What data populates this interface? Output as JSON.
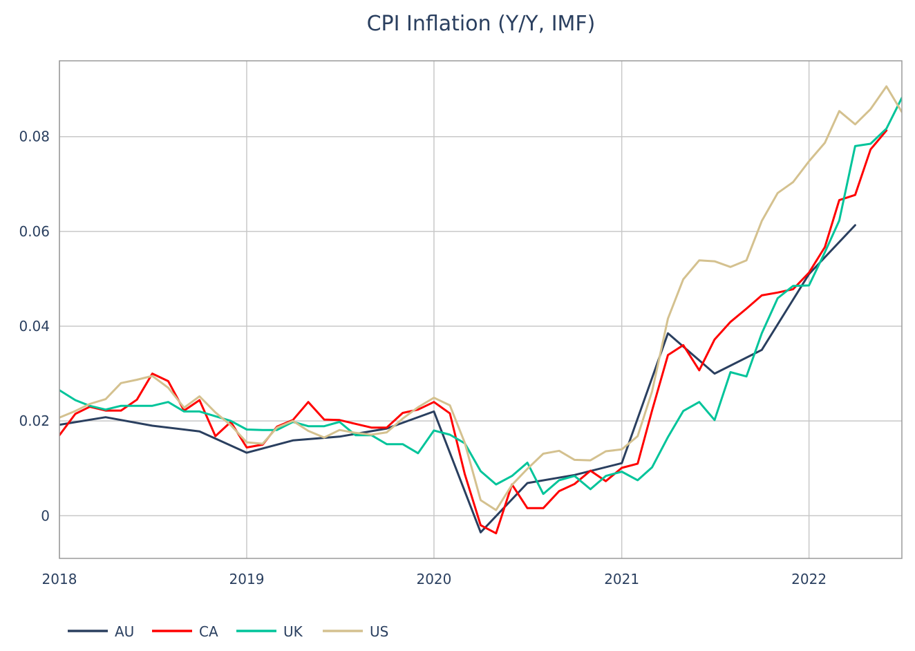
{
  "chart_data": {
    "type": "line",
    "title": "CPI Inflation (Y/Y, IMF)",
    "xlabel": "",
    "ylabel": "",
    "x_ticks": [
      "2018",
      "2019",
      "2020",
      "2021",
      "2022"
    ],
    "y_ticks": [
      0,
      0.02,
      0.04,
      0.06,
      0.08
    ],
    "y_tick_labels": [
      "0",
      "0.02",
      "0.04",
      "0.06",
      "0.08"
    ],
    "xlim": [
      "2018-01-01",
      "2022-07-01"
    ],
    "ylim": [
      -0.009,
      0.096
    ],
    "grid": true,
    "legend_position": "bottom-left",
    "series": [
      {
        "name": "AU",
        "color": "#2a3f5f",
        "points": [
          [
            "2018-01-01",
            0.0192
          ],
          [
            "2018-04-01",
            0.0208
          ],
          [
            "2018-07-01",
            0.019
          ],
          [
            "2018-10-01",
            0.0178
          ],
          [
            "2019-01-01",
            0.0133
          ],
          [
            "2019-04-01",
            0.0159
          ],
          [
            "2019-07-01",
            0.0167
          ],
          [
            "2019-10-01",
            0.0184
          ],
          [
            "2020-01-01",
            0.022
          ],
          [
            "2020-04-01",
            -0.0035
          ],
          [
            "2020-07-01",
            0.0069
          ],
          [
            "2020-10-01",
            0.0086
          ],
          [
            "2021-01-01",
            0.0111
          ],
          [
            "2021-04-01",
            0.0385
          ],
          [
            "2021-07-01",
            0.03
          ],
          [
            "2021-10-01",
            0.035
          ],
          [
            "2022-01-01",
            0.051
          ],
          [
            "2022-04-01",
            0.0613
          ]
        ]
      },
      {
        "name": "CA",
        "color": "#ff0000",
        "points": [
          [
            "2018-01-01",
            0.017
          ],
          [
            "2018-02-01",
            0.0215
          ],
          [
            "2018-03-01",
            0.023
          ],
          [
            "2018-04-01",
            0.0222
          ],
          [
            "2018-05-01",
            0.0222
          ],
          [
            "2018-06-01",
            0.0245
          ],
          [
            "2018-07-01",
            0.03
          ],
          [
            "2018-08-01",
            0.0284
          ],
          [
            "2018-09-01",
            0.0222
          ],
          [
            "2018-10-01",
            0.0244
          ],
          [
            "2018-11-01",
            0.0168
          ],
          [
            "2018-12-01",
            0.0198
          ],
          [
            "2019-01-01",
            0.0144
          ],
          [
            "2019-02-01",
            0.015
          ],
          [
            "2019-03-01",
            0.0188
          ],
          [
            "2019-04-01",
            0.0202
          ],
          [
            "2019-05-01",
            0.024
          ],
          [
            "2019-06-01",
            0.0203
          ],
          [
            "2019-07-01",
            0.0202
          ],
          [
            "2019-08-01",
            0.0194
          ],
          [
            "2019-09-01",
            0.0186
          ],
          [
            "2019-10-01",
            0.0186
          ],
          [
            "2019-11-01",
            0.0217
          ],
          [
            "2019-12-01",
            0.0224
          ],
          [
            "2020-01-01",
            0.024
          ],
          [
            "2020-02-01",
            0.0216
          ],
          [
            "2020-03-01",
            0.0088
          ],
          [
            "2020-04-01",
            -0.002
          ],
          [
            "2020-05-01",
            -0.0037
          ],
          [
            "2020-06-01",
            0.0066
          ],
          [
            "2020-07-01",
            0.0016
          ],
          [
            "2020-08-01",
            0.0016
          ],
          [
            "2020-09-01",
            0.0052
          ],
          [
            "2020-10-01",
            0.0067
          ],
          [
            "2020-11-01",
            0.0095
          ],
          [
            "2020-12-01",
            0.0073
          ],
          [
            "2021-01-01",
            0.0101
          ],
          [
            "2021-02-01",
            0.011
          ],
          [
            "2021-03-01",
            0.0222
          ],
          [
            "2021-04-01",
            0.0339
          ],
          [
            "2021-05-01",
            0.036
          ],
          [
            "2021-06-01",
            0.0307
          ],
          [
            "2021-07-01",
            0.0372
          ],
          [
            "2021-08-01",
            0.0409
          ],
          [
            "2021-09-01",
            0.0437
          ],
          [
            "2021-10-01",
            0.0465
          ],
          [
            "2021-11-01",
            0.0471
          ],
          [
            "2021-12-01",
            0.0478
          ],
          [
            "2022-01-01",
            0.0513
          ],
          [
            "2022-02-01",
            0.0567
          ],
          [
            "2022-03-01",
            0.0666
          ],
          [
            "2022-04-01",
            0.0677
          ],
          [
            "2022-05-01",
            0.0773
          ],
          [
            "2022-06-01",
            0.0813
          ]
        ]
      },
      {
        "name": "UK",
        "color": "#00c49a",
        "points": [
          [
            "2018-01-01",
            0.0265
          ],
          [
            "2018-02-01",
            0.0244
          ],
          [
            "2018-03-01",
            0.0232
          ],
          [
            "2018-04-01",
            0.0224
          ],
          [
            "2018-05-01",
            0.0232
          ],
          [
            "2018-06-01",
            0.0232
          ],
          [
            "2018-07-01",
            0.0232
          ],
          [
            "2018-08-01",
            0.024
          ],
          [
            "2018-09-01",
            0.022
          ],
          [
            "2018-10-01",
            0.022
          ],
          [
            "2018-11-01",
            0.021
          ],
          [
            "2018-12-01",
            0.02
          ],
          [
            "2019-01-01",
            0.0182
          ],
          [
            "2019-02-01",
            0.0181
          ],
          [
            "2019-03-01",
            0.0181
          ],
          [
            "2019-04-01",
            0.0198
          ],
          [
            "2019-05-01",
            0.0189
          ],
          [
            "2019-06-01",
            0.0189
          ],
          [
            "2019-07-01",
            0.0198
          ],
          [
            "2019-08-01",
            0.017
          ],
          [
            "2019-09-01",
            0.017
          ],
          [
            "2019-10-01",
            0.0151
          ],
          [
            "2019-11-01",
            0.0151
          ],
          [
            "2019-12-01",
            0.0132
          ],
          [
            "2020-01-01",
            0.018
          ],
          [
            "2020-02-01",
            0.0171
          ],
          [
            "2020-03-01",
            0.0153
          ],
          [
            "2020-04-01",
            0.0094
          ],
          [
            "2020-05-01",
            0.0066
          ],
          [
            "2020-06-01",
            0.0084
          ],
          [
            "2020-07-01",
            0.0112
          ],
          [
            "2020-08-01",
            0.0046
          ],
          [
            "2020-09-01",
            0.0075
          ],
          [
            "2020-10-01",
            0.0084
          ],
          [
            "2020-11-01",
            0.0056
          ],
          [
            "2020-12-01",
            0.0084
          ],
          [
            "2021-01-01",
            0.0093
          ],
          [
            "2021-02-01",
            0.0075
          ],
          [
            "2021-03-01",
            0.0102
          ],
          [
            "2021-04-01",
            0.0166
          ],
          [
            "2021-05-01",
            0.0221
          ],
          [
            "2021-06-01",
            0.024
          ],
          [
            "2021-07-01",
            0.0202
          ],
          [
            "2021-08-01",
            0.0303
          ],
          [
            "2021-09-01",
            0.0294
          ],
          [
            "2021-10-01",
            0.0385
          ],
          [
            "2021-11-01",
            0.0459
          ],
          [
            "2021-12-01",
            0.0485
          ],
          [
            "2022-01-01",
            0.0486
          ],
          [
            "2022-02-01",
            0.0556
          ],
          [
            "2022-03-01",
            0.0623
          ],
          [
            "2022-04-01",
            0.078
          ],
          [
            "2022-05-01",
            0.0785
          ],
          [
            "2022-06-01",
            0.0817
          ],
          [
            "2022-07-01",
            0.0882
          ]
        ]
      },
      {
        "name": "US",
        "color": "#d4c18f",
        "points": [
          [
            "2018-01-01",
            0.0207
          ],
          [
            "2018-02-01",
            0.0221
          ],
          [
            "2018-03-01",
            0.0236
          ],
          [
            "2018-04-01",
            0.0246
          ],
          [
            "2018-05-01",
            0.028
          ],
          [
            "2018-06-01",
            0.0287
          ],
          [
            "2018-07-01",
            0.0295
          ],
          [
            "2018-08-01",
            0.027
          ],
          [
            "2018-09-01",
            0.0228
          ],
          [
            "2018-10-01",
            0.0252
          ],
          [
            "2018-11-01",
            0.0218
          ],
          [
            "2018-12-01",
            0.0191
          ],
          [
            "2019-01-01",
            0.0155
          ],
          [
            "2019-02-01",
            0.0152
          ],
          [
            "2019-03-01",
            0.0186
          ],
          [
            "2019-04-01",
            0.02
          ],
          [
            "2019-05-01",
            0.0179
          ],
          [
            "2019-06-01",
            0.0165
          ],
          [
            "2019-07-01",
            0.0181
          ],
          [
            "2019-08-01",
            0.0175
          ],
          [
            "2019-09-01",
            0.0171
          ],
          [
            "2019-10-01",
            0.0176
          ],
          [
            "2019-11-01",
            0.0205
          ],
          [
            "2019-12-01",
            0.0229
          ],
          [
            "2020-01-01",
            0.0249
          ],
          [
            "2020-02-01",
            0.0233
          ],
          [
            "2020-03-01",
            0.0154
          ],
          [
            "2020-04-01",
            0.0033
          ],
          [
            "2020-05-01",
            0.0012
          ],
          [
            "2020-06-01",
            0.0065
          ],
          [
            "2020-07-01",
            0.0099
          ],
          [
            "2020-08-01",
            0.0131
          ],
          [
            "2020-09-01",
            0.0137
          ],
          [
            "2020-10-01",
            0.0118
          ],
          [
            "2020-11-01",
            0.0117
          ],
          [
            "2020-12-01",
            0.0136
          ],
          [
            "2021-01-01",
            0.014
          ],
          [
            "2021-02-01",
            0.0168
          ],
          [
            "2021-03-01",
            0.0262
          ],
          [
            "2021-04-01",
            0.0416
          ],
          [
            "2021-05-01",
            0.0499
          ],
          [
            "2021-06-01",
            0.0539
          ],
          [
            "2021-07-01",
            0.0537
          ],
          [
            "2021-08-01",
            0.0525
          ],
          [
            "2021-09-01",
            0.0539
          ],
          [
            "2021-10-01",
            0.0622
          ],
          [
            "2021-11-01",
            0.0681
          ],
          [
            "2021-12-01",
            0.0704
          ],
          [
            "2022-01-01",
            0.0748
          ],
          [
            "2022-02-01",
            0.0787
          ],
          [
            "2022-03-01",
            0.0854
          ],
          [
            "2022-04-01",
            0.0826
          ],
          [
            "2022-05-01",
            0.0858
          ],
          [
            "2022-06-01",
            0.0906
          ],
          [
            "2022-07-01",
            0.0852
          ]
        ]
      }
    ]
  }
}
